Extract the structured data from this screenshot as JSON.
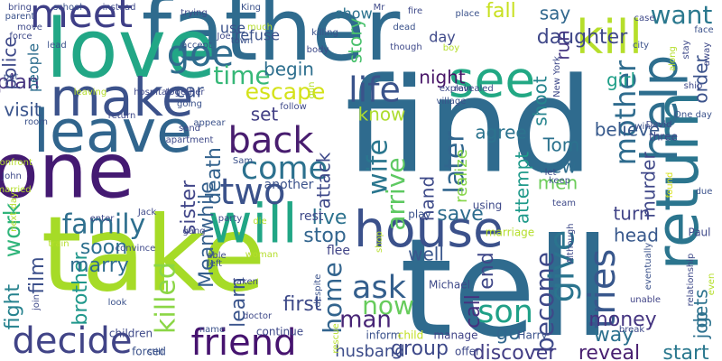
{
  "wordcloud": {
    "words": [
      {
        "text": "find",
        "color": "#2f6b8e"
      },
      {
        "text": "tell",
        "color": "#2f6b8e"
      },
      {
        "text": "take",
        "color": "#a6db27"
      },
      {
        "text": "father",
        "color": "#2f6b8e"
      },
      {
        "text": "love",
        "color": "#22a786"
      },
      {
        "text": "one",
        "color": "#441a72"
      },
      {
        "text": "meet",
        "color": "#3f3f87"
      },
      {
        "text": "leave",
        "color": "#31658d"
      },
      {
        "text": "make",
        "color": "#3c528b"
      },
      {
        "text": "house",
        "color": "#3b518b"
      },
      {
        "text": "will",
        "color": "#21a685"
      },
      {
        "text": "see",
        "color": "#22a884"
      },
      {
        "text": "kill",
        "color": "#b6de2b"
      },
      {
        "text": "return",
        "color": "#2b758e"
      },
      {
        "text": "help",
        "color": "#2e6e8e"
      },
      {
        "text": "friend",
        "color": "#46136f"
      },
      {
        "text": "decide",
        "color": "#414487"
      },
      {
        "text": "family",
        "color": "#2e6f8e"
      },
      {
        "text": "two",
        "color": "#3b528b"
      },
      {
        "text": "back",
        "color": "#481d6f"
      },
      {
        "text": "come",
        "color": "#2c718e"
      },
      {
        "text": "goe",
        "color": "#2f6c8e"
      },
      {
        "text": "time",
        "color": "#37b878"
      },
      {
        "text": "escape",
        "color": "#d4e21a"
      },
      {
        "text": "life",
        "color": "#3a538b"
      },
      {
        "text": "son",
        "color": "#1fa087"
      },
      {
        "text": "ask",
        "color": "#345f8d"
      },
      {
        "text": "mother",
        "color": "#2f6c8e"
      },
      {
        "text": "wife",
        "color": "#2a768e"
      },
      {
        "text": "give",
        "color": "#2b748e"
      },
      {
        "text": "arrive",
        "color": "#5ec962"
      },
      {
        "text": "later",
        "color": "#31668e"
      },
      {
        "text": "want",
        "color": "#2a788e"
      },
      {
        "text": "tries",
        "color": "#38578c"
      },
      {
        "text": "become",
        "color": "#3e4989"
      },
      {
        "text": "home",
        "color": "#32648e"
      },
      {
        "text": "now",
        "color": "#67cc5c"
      },
      {
        "text": "killed",
        "color": "#8bd646"
      },
      {
        "text": "work",
        "color": "#31b57b"
      },
      {
        "text": "film",
        "color": "#3c508b"
      },
      {
        "text": "brother",
        "color": "#1f978b"
      },
      {
        "text": "marry",
        "color": "#2f6c8e"
      },
      {
        "text": "fight",
        "color": "#26828e"
      },
      {
        "text": "man",
        "color": "#482576"
      },
      {
        "text": "first",
        "color": "#3e4a89"
      },
      {
        "text": "learn",
        "color": "#3a548c"
      },
      {
        "text": "group",
        "color": "#3e4989"
      },
      {
        "text": "discover",
        "color": "#433e85"
      },
      {
        "text": "reveal",
        "color": "#481f70"
      },
      {
        "text": "start",
        "color": "#2a788e"
      },
      {
        "text": "money",
        "color": "#453581"
      },
      {
        "text": "way",
        "color": "#2c718e"
      },
      {
        "text": "go",
        "color": "#31678e"
      },
      {
        "text": "call",
        "color": "#46307e"
      },
      {
        "text": "end",
        "color": "#3f4788"
      },
      {
        "text": "save",
        "color": "#2e6d8e"
      },
      {
        "text": "live",
        "color": "#2c728e"
      },
      {
        "text": "stop",
        "color": "#32658e"
      },
      {
        "text": "soon",
        "color": "#2d708e"
      },
      {
        "text": "death",
        "color": "#33628d"
      },
      {
        "text": "sister",
        "color": "#404588"
      },
      {
        "text": "Meanwhile",
        "color": "#35608d"
      },
      {
        "text": "set",
        "color": "#423f85"
      },
      {
        "text": "begin",
        "color": "#2e6f8e"
      },
      {
        "text": "car",
        "color": "#3b528b"
      },
      {
        "text": "plan",
        "color": "#46337f"
      },
      {
        "text": "visit",
        "color": "#3a548c"
      },
      {
        "text": "police",
        "color": "#3e4989"
      },
      {
        "text": "people",
        "color": "#2e6e8e"
      },
      {
        "text": "night",
        "color": "#481668"
      },
      {
        "text": "story",
        "color": "#4ac16d"
      },
      {
        "text": "know",
        "color": "#addc30"
      },
      {
        "text": "agree",
        "color": "#2c738e"
      },
      {
        "text": "daughter",
        "color": "#3f4788"
      },
      {
        "text": "say",
        "color": "#31688e"
      },
      {
        "text": "girl",
        "color": "#1f9f88"
      },
      {
        "text": "believe",
        "color": "#37598c"
      },
      {
        "text": "order",
        "color": "#3b528b"
      },
      {
        "text": "attempt",
        "color": "#1f9a8a"
      },
      {
        "text": "realize",
        "color": "#86d549"
      },
      {
        "text": "Tom",
        "color": "#2c728e"
      },
      {
        "text": "new",
        "color": "#2e6d8e"
      },
      {
        "text": "men",
        "color": "#6ccd5a"
      },
      {
        "text": "turn",
        "color": "#414487"
      },
      {
        "text": "murder",
        "color": "#3f4788"
      },
      {
        "text": "gets",
        "color": "#2c738e"
      },
      {
        "text": "job",
        "color": "#2d708e"
      },
      {
        "text": "head",
        "color": "#38588c"
      },
      {
        "text": "well",
        "color": "#39568c"
      },
      {
        "text": "attack",
        "color": "#3e4989"
      },
      {
        "text": "hand",
        "color": "#3e4a89"
      },
      {
        "text": "husband",
        "color": "#3d4d8a"
      },
      {
        "text": "run",
        "color": "#453581"
      },
      {
        "text": "shoot",
        "color": "#25848e"
      },
      {
        "text": "fall",
        "color": "#c8e020"
      },
      {
        "text": "show",
        "color": "#2c728e"
      },
      {
        "text": "use",
        "color": "#3b528b"
      },
      {
        "text": "refuse",
        "color": "#3b528b"
      },
      {
        "text": "day",
        "color": "#3e4989"
      },
      {
        "text": "another",
        "color": "#3b528b"
      },
      {
        "text": "rest",
        "color": "#3e4989"
      },
      {
        "text": "flee",
        "color": "#414487"
      },
      {
        "text": "play",
        "color": "#3b528b"
      },
      {
        "text": "using",
        "color": "#3e4989"
      },
      {
        "text": "marriage",
        "color": "#b5de2b"
      },
      {
        "text": "children",
        "color": "#3e4989"
      },
      {
        "text": "forced",
        "color": "#3b528b"
      },
      {
        "text": "continue",
        "color": "#3e4989"
      },
      {
        "text": "inform",
        "color": "#3b528b"
      },
      {
        "text": "child",
        "color": "#c2df23"
      },
      {
        "text": "offer",
        "color": "#3e4989"
      },
      {
        "text": "manage",
        "color": "#414487"
      },
      {
        "text": "Michael",
        "color": "#3e4989"
      },
      {
        "text": "Harry",
        "color": "#3b528b"
      },
      {
        "text": "break",
        "color": "#3e4989"
      },
      {
        "text": "unable",
        "color": "#414487"
      },
      {
        "text": "relationship",
        "color": "#3e4989"
      },
      {
        "text": "eventually",
        "color": "#3b528b"
      },
      {
        "text": "Paul",
        "color": "#3e4989"
      },
      {
        "text": "Although",
        "color": "#3e4989"
      },
      {
        "text": "found",
        "color": "#d8e219"
      },
      {
        "text": "due",
        "color": "#3b528b"
      },
      {
        "text": "team",
        "color": "#3e4989"
      },
      {
        "text": "keep",
        "color": "#3b528b"
      },
      {
        "text": "let",
        "color": "#3e4989"
      },
      {
        "text": "win",
        "color": "#3b528b"
      },
      {
        "text": "three",
        "color": "#3e4989"
      },
      {
        "text": "David",
        "color": "#3e4989"
      },
      {
        "text": "One day",
        "color": "#3b528b"
      },
      {
        "text": "ship",
        "color": "#3e4989"
      },
      {
        "text": "city",
        "color": "#3b528b"
      },
      {
        "text": "stay",
        "color": "#3e4989"
      },
      {
        "text": "along",
        "color": "#b5de2b"
      },
      {
        "text": "away",
        "color": "#3e4989"
      },
      {
        "text": "face",
        "color": "#3b528b"
      },
      {
        "text": "case",
        "color": "#3e4989"
      },
      {
        "text": "place",
        "color": "#3b528b"
      },
      {
        "text": "New York",
        "color": "#3e4989"
      },
      {
        "text": "revealed",
        "color": "#3e4989"
      },
      {
        "text": "boy",
        "color": "#b5de2b"
      },
      {
        "text": "fire",
        "color": "#3e4989"
      },
      {
        "text": "dead",
        "color": "#3b528b"
      },
      {
        "text": "explain",
        "color": "#3e4989"
      },
      {
        "text": "village",
        "color": "#3b528b"
      },
      {
        "text": "though",
        "color": "#3e4989"
      },
      {
        "text": "follow",
        "color": "#3e4989"
      },
      {
        "text": "gun",
        "color": "#b5de2b"
      },
      {
        "text": "body",
        "color": "#3e4989"
      },
      {
        "text": "killing",
        "color": "#3b528b"
      },
      {
        "text": "Mr",
        "color": "#3e4989"
      },
      {
        "text": "King",
        "color": "#3b528b"
      },
      {
        "text": "much",
        "color": "#b5de2b"
      },
      {
        "text": "Joe",
        "color": "#3e4989"
      },
      {
        "text": "town",
        "color": "#3b528b"
      },
      {
        "text": "trying",
        "color": "#3e4989"
      },
      {
        "text": "accept",
        "color": "#3b528b"
      },
      {
        "text": "instead",
        "color": "#3e4989"
      },
      {
        "text": "school",
        "color": "#3b528b"
      },
      {
        "text": "bring",
        "color": "#3e4989"
      },
      {
        "text": "parent",
        "color": "#3b528b"
      },
      {
        "text": "move",
        "color": "#3e4989"
      },
      {
        "text": "lead",
        "color": "#3b528b"
      },
      {
        "text": "force",
        "color": "#3e4989"
      },
      {
        "text": "put",
        "color": "#3b528b"
      },
      {
        "text": "together",
        "color": "#3e4989"
      },
      {
        "text": "leaving",
        "color": "#b5de2b"
      },
      {
        "text": "hospital",
        "color": "#3e4989"
      },
      {
        "text": "going",
        "color": "#3b528b"
      },
      {
        "text": "return",
        "color": "#3e4989"
      },
      {
        "text": "room",
        "color": "#3b528b"
      },
      {
        "text": "send",
        "color": "#3e4989"
      },
      {
        "text": "appear",
        "color": "#3b528b"
      },
      {
        "text": "apartment",
        "color": "#3e4989"
      },
      {
        "text": "Sam",
        "color": "#3b528b"
      },
      {
        "text": "confront",
        "color": "#b5de2b"
      },
      {
        "text": "John",
        "color": "#3e4989"
      },
      {
        "text": "married",
        "color": "#b5de2b"
      },
      {
        "text": "next day",
        "color": "#b5de2b"
      },
      {
        "text": "enter",
        "color": "#3e4989"
      },
      {
        "text": "train",
        "color": "#b5de2b"
      },
      {
        "text": "Jack",
        "color": "#3e4989"
      },
      {
        "text": "die",
        "color": "#b5de2b"
      },
      {
        "text": "able",
        "color": "#3e4989"
      },
      {
        "text": "left",
        "color": "#3b528b"
      },
      {
        "text": "woman",
        "color": "#b5de2b"
      },
      {
        "text": "party",
        "color": "#3e4989"
      },
      {
        "text": "convince",
        "color": "#3e4989"
      },
      {
        "text": "look",
        "color": "#3b528b"
      },
      {
        "text": "join",
        "color": "#3e4989"
      },
      {
        "text": "name",
        "color": "#3b528b"
      },
      {
        "text": "taken",
        "color": "#3e4989"
      },
      {
        "text": "despite",
        "color": "#3b528b"
      },
      {
        "text": "doctor",
        "color": "#3e4989"
      },
      {
        "text": "still",
        "color": "#3b528b"
      },
      {
        "text": "rescue",
        "color": "#b5de2b"
      },
      {
        "text": "gang",
        "color": "#3e4989"
      },
      {
        "text": "shop",
        "color": "#b5de2b"
      },
      {
        "text": "even",
        "color": "#b5de2b"
      },
      {
        "text": "finally",
        "color": "#3e4989"
      }
    ]
  }
}
